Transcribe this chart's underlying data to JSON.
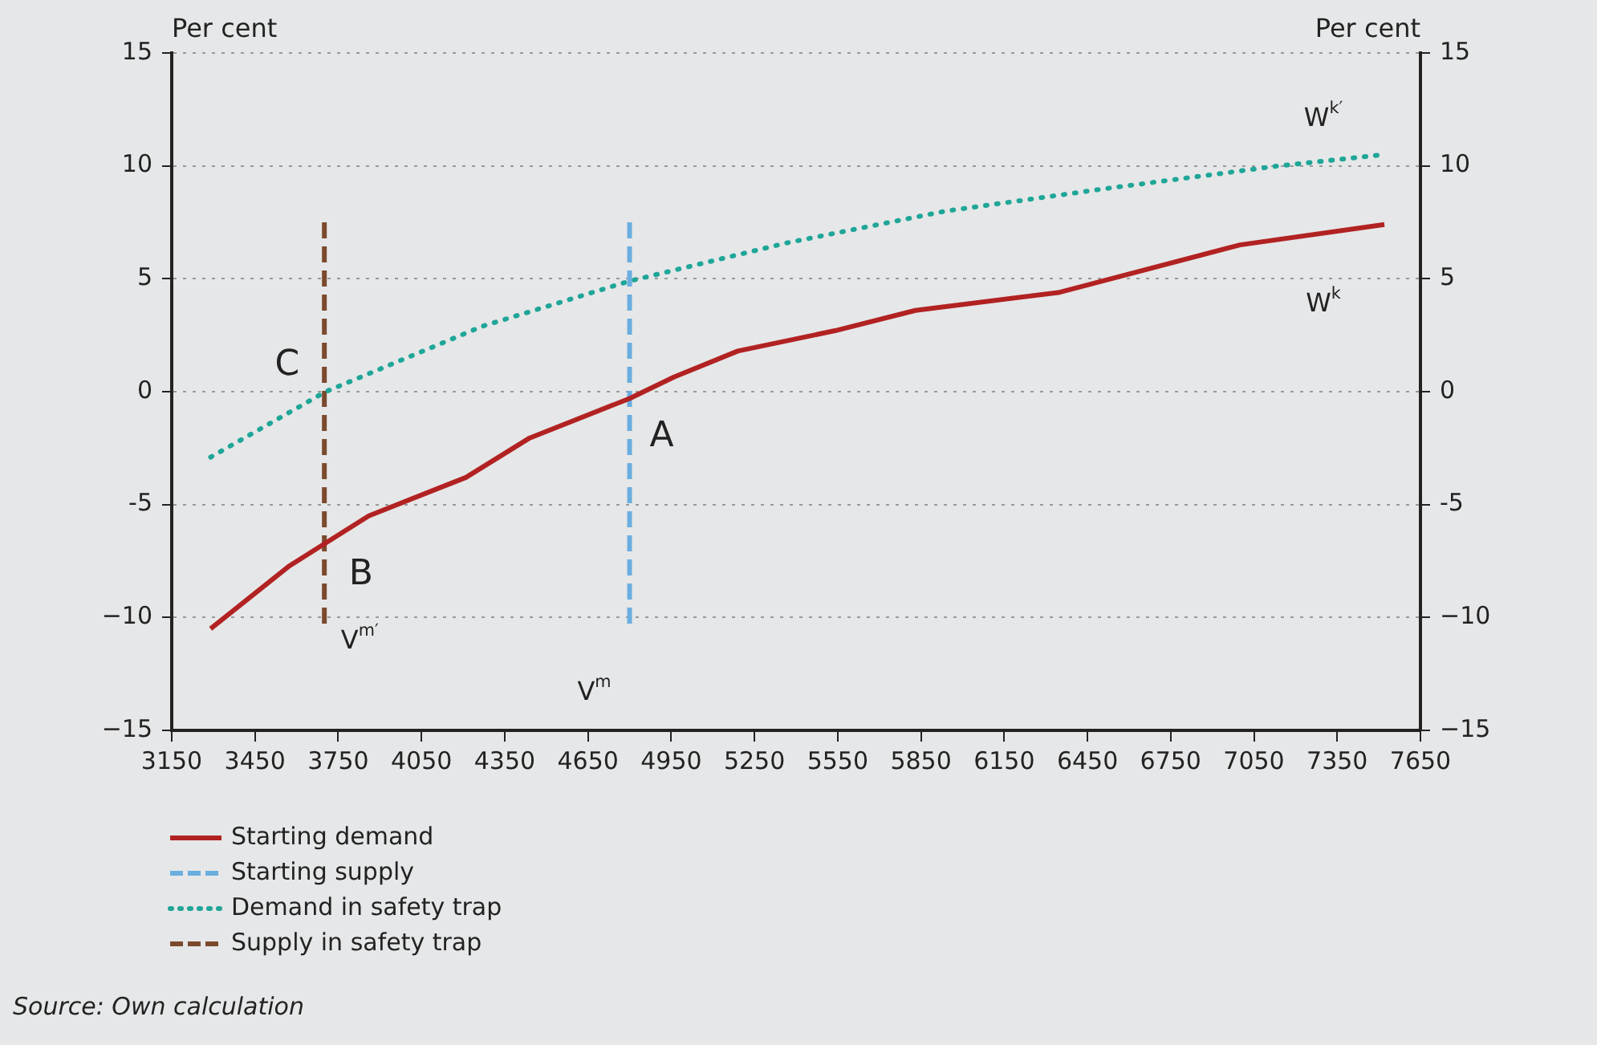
{
  "chart_data": {
    "type": "line",
    "ylabel": "Per cent",
    "y2label": "Per cent",
    "xlim": [
      3150,
      7650
    ],
    "xticks": [
      3150,
      3450,
      3750,
      4050,
      4350,
      4650,
      4950,
      5250,
      5550,
      5850,
      6150,
      6450,
      6750,
      7050,
      7350,
      7650
    ],
    "ylim": [
      -15,
      15
    ],
    "yticks": [
      {
        "value": -15,
        "label": "−15"
      },
      {
        "value": -10,
        "label": "−10"
      },
      {
        "value": -5,
        "label": "-5"
      },
      0,
      5,
      10,
      15
    ],
    "y2lim": [
      -15,
      15
    ],
    "y2ticks": [
      {
        "value": -15,
        "label": "−15"
      },
      {
        "value": -10,
        "label": "−10"
      },
      {
        "value": -5,
        "label": "-5"
      },
      0,
      5,
      10,
      15
    ],
    "grid": "y",
    "legend": "bottom left",
    "marker": "none",
    "series": [
      {
        "name": "Starting demand",
        "color": "#b22222",
        "line_style": "solid",
        "x": [
          3290,
          3570,
          3705,
          3860,
          4210,
          4440,
          4800,
          4960,
          5190,
          5540,
          5830,
          6350,
          7000,
          7520
        ],
        "values": [
          -10.5,
          -7.75,
          -6.7,
          -5.5,
          -3.8,
          -2.05,
          -0.3,
          0.65,
          1.8,
          2.7,
          3.6,
          4.4,
          6.5,
          7.4
        ]
      },
      {
        "name": "Starting supply",
        "color": "#6aaee0",
        "line_style": "dashed",
        "x": [
          4800,
          4800
        ],
        "values": [
          7.5,
          -10.5
        ]
      },
      {
        "name": "Demand in safety trap",
        "color": "#1fa698",
        "line_style": "dotted",
        "x": [
          3290,
          3705,
          4270,
          4800,
          5370,
          5940,
          6520,
          7140,
          7520
        ],
        "values": [
          -2.9,
          0,
          2.9,
          4.9,
          6.6,
          8.0,
          9.0,
          10.0,
          10.5
        ]
      },
      {
        "name": "Supply in safety trap",
        "color": "#7b4a2d",
        "line_style": "dashed",
        "x": [
          3700,
          3700
        ],
        "values": [
          7.5,
          -10.5
        ]
      }
    ],
    "annotations": [
      {
        "text": "A",
        "x": 4800,
        "y": -0.3
      },
      {
        "text": "B",
        "x": 3705,
        "y": -6.7
      },
      {
        "text": "C",
        "x": 3705,
        "y": 0
      },
      {
        "text": "V$^{m}$",
        "x": 4800,
        "y": -10.5
      },
      {
        "text": "V$^{m′}$",
        "x": 3700,
        "y": -10.5
      },
      {
        "text": "W$^{k}$",
        "x": 7520,
        "y": 7.4
      },
      {
        "text": "W$^{k′}$",
        "x": 7520,
        "y": 10.5
      },
      "Source: Own calculation"
    ]
  }
}
